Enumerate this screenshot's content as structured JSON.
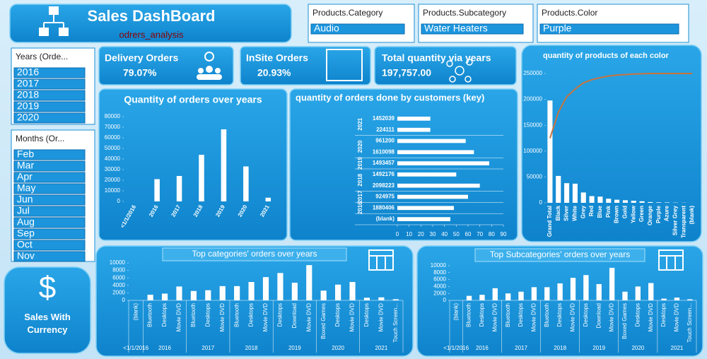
{
  "header": {
    "title": "Sales DashBoard",
    "subtitle": "odrers_analysis"
  },
  "slicers": [
    {
      "title": "Products.Category",
      "items": [
        "Audio"
      ]
    },
    {
      "title": "Products.Subcategory",
      "items": [
        "Water Heaters"
      ]
    },
    {
      "title": "Products.Color",
      "items": [
        "Purple"
      ]
    },
    {
      "title": "Years (Orde...",
      "items": [
        "2016",
        "2017",
        "2018",
        "2019",
        "2020"
      ]
    },
    {
      "title": "Months (Or...",
      "items": [
        "Feb",
        "Mar",
        "Apr",
        "May",
        "Jun",
        "Jul",
        "Aug",
        "Sep",
        "Oct",
        "Nov"
      ]
    }
  ],
  "kpis": [
    {
      "label": "Delivery Orders",
      "value": "79.07%"
    },
    {
      "label": "InSite Orders",
      "value": "20.93%"
    },
    {
      "label": "Total quantity via years",
      "value": "197,757.00"
    }
  ],
  "button": {
    "symbol": "$",
    "label": "Sales With Currency"
  },
  "chart_data": [
    {
      "type": "bar",
      "title": "Quantity of orders over years",
      "categories": [
        "<1/1/2016",
        "2016",
        "2017",
        "2018",
        "2019",
        "2020",
        "2021"
      ],
      "values": [
        0,
        21000,
        24000,
        44000,
        68000,
        33000,
        3500
      ],
      "color": "#ffffff",
      "ylim": [
        0,
        80000
      ],
      "yticks": [
        0,
        10000,
        20000,
        30000,
        40000,
        50000,
        60000,
        70000,
        80000
      ]
    },
    {
      "type": "bar",
      "orientation": "horizontal",
      "title": "quantity of orders done by customers (key)",
      "groups": [
        {
          "name": "2021",
          "categories": [
            "1452039",
            "224111"
          ],
          "values": [
            28,
            28
          ]
        },
        {
          "name": "2020",
          "categories": [
            "961200",
            "1610098"
          ],
          "values": [
            58,
            65
          ]
        },
        {
          "name": "2019",
          "categories": [
            "1493457"
          ],
          "values": [
            78
          ]
        },
        {
          "name": "2018",
          "categories": [
            "1492176",
            "2098223"
          ],
          "values": [
            50,
            70
          ]
        },
        {
          "name": "2017",
          "categories": [
            "924975"
          ],
          "values": [
            60
          ]
        },
        {
          "name": "2016",
          "categories": [
            "1880406"
          ],
          "values": [
            48
          ]
        },
        {
          "name": null,
          "categories": [
            "(blank)"
          ],
          "values": [
            45
          ]
        }
      ],
      "color": "#ffffff",
      "xlim": [
        0,
        90
      ],
      "xticks": [
        0,
        10,
        20,
        30,
        40,
        50,
        60,
        70,
        80,
        90
      ]
    },
    {
      "type": "combo",
      "title": "quantity of products of each color",
      "categories": [
        "Grand Total",
        "Black",
        "Silver",
        "White",
        "Grey",
        "Red",
        "Blue",
        "Pink",
        "Brown",
        "Gold",
        "Yellow",
        "Green",
        "Orange",
        "Purple",
        "Azure",
        "Silver Grey",
        "Transparent",
        "(blank)"
      ],
      "series": [
        {
          "type": "bar",
          "color": "#ffffff",
          "values": [
            197757,
            52000,
            38000,
            37000,
            20000,
            13000,
            12000,
            8000,
            6000,
            5000,
            4000,
            3000,
            1500,
            1000,
            800,
            500,
            300,
            100
          ]
        },
        {
          "type": "line",
          "color": "#c8743c",
          "values": [
            125000,
            175000,
            205000,
            220000,
            232000,
            238000,
            242000,
            245000,
            247000,
            248000,
            249000,
            249500,
            250000,
            250000,
            250000,
            250000,
            250000,
            250000
          ]
        }
      ],
      "ylim": [
        0,
        250000
      ],
      "yticks": [
        0,
        50000,
        100000,
        150000,
        200000,
        250000
      ]
    },
    {
      "type": "bar",
      "title": "Top categories' orders over years",
      "groups": [
        {
          "name": "<1/1/2016",
          "categories": [
            "(blank)"
          ],
          "values": [
            0
          ]
        },
        {
          "name": "2016",
          "categories": [
            "Bluetooth",
            "Desktops",
            "Movie DVD"
          ],
          "values": [
            1500,
            1800,
            3700
          ]
        },
        {
          "name": "2017",
          "categories": [
            "Bluetooth",
            "Desktops",
            "Movie DVD"
          ],
          "values": [
            2500,
            2700,
            3800
          ]
        },
        {
          "name": "2018",
          "categories": [
            "Bluetooth",
            "Desktops",
            "Movie DVD"
          ],
          "values": [
            3800,
            4900,
            6200
          ]
        },
        {
          "name": "2019",
          "categories": [
            "Desktops",
            "Download",
            "Movie DVD"
          ],
          "values": [
            7300,
            4700,
            9400
          ]
        },
        {
          "name": "2020",
          "categories": [
            "Boxed Games",
            "Desktops",
            "Movie DVD"
          ],
          "values": [
            2600,
            4200,
            4900
          ]
        },
        {
          "name": "2021",
          "categories": [
            "Desktops",
            "Movie DVD",
            "Touch Screen..."
          ],
          "values": [
            700,
            800,
            300
          ]
        }
      ],
      "color": "#ffffff",
      "ylim": [
        0,
        10000
      ],
      "yticks": [
        0,
        2000,
        4000,
        6000,
        8000,
        10000
      ]
    },
    {
      "type": "bar",
      "title": "Top Subcategories' orders over years",
      "groups": [
        {
          "name": "<1/1/2016",
          "categories": [
            "(blank)"
          ],
          "values": [
            0
          ]
        },
        {
          "name": "2016",
          "categories": [
            "Bluetooth",
            "Desktops",
            "Movie DVD"
          ],
          "values": [
            1300,
            1600,
            3500
          ]
        },
        {
          "name": "2017",
          "categories": [
            "Bluetooth",
            "Desktops",
            "Movie DVD"
          ],
          "values": [
            2000,
            2500,
            3800
          ]
        },
        {
          "name": "2018",
          "categories": [
            "Bluetooth",
            "Desktops",
            "Movie DVD"
          ],
          "values": [
            3800,
            4900,
            6500
          ]
        },
        {
          "name": "2019",
          "categories": [
            "Desktops",
            "Download",
            "Movie DVD"
          ],
          "values": [
            7300,
            4700,
            9400
          ]
        },
        {
          "name": "2020",
          "categories": [
            "Boxed Games",
            "Desktops",
            "Movie DVD"
          ],
          "values": [
            2500,
            4000,
            5000
          ]
        },
        {
          "name": "2021",
          "categories": [
            "Desktops",
            "Movie DVD",
            "Touch Screen..."
          ],
          "values": [
            500,
            800,
            300
          ]
        }
      ],
      "color": "#ffffff",
      "ylim": [
        0,
        10000
      ],
      "yticks": [
        0,
        2000,
        4000,
        6000,
        8000,
        10000
      ]
    }
  ]
}
